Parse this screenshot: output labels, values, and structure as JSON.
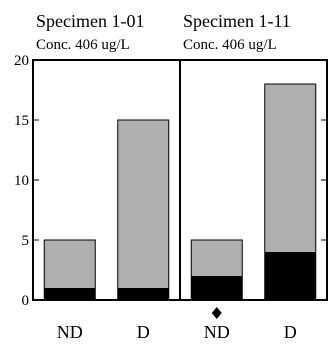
{
  "chart_data": {
    "type": "bar",
    "stacked": true,
    "ylim": [
      0,
      20
    ],
    "yticks": [
      0,
      5,
      10,
      15,
      20
    ],
    "colors": {
      "bottom": "#000000",
      "top": "#b0b0b0",
      "frame": "#000000"
    },
    "panels": [
      {
        "title": "Specimen 1-01",
        "subtitle": "Conc. 406 ug/L",
        "categories": [
          "ND",
          "D"
        ],
        "series": [
          {
            "values": [
              1,
              1
            ]
          },
          {
            "values": [
              4,
              14
            ]
          }
        ],
        "totals": [
          5,
          15
        ]
      },
      {
        "title": "Specimen 1-11",
        "subtitle": "Conc. 406 ug/L",
        "categories": [
          "ND",
          "D"
        ],
        "series": [
          {
            "values": [
              2,
              4
            ]
          },
          {
            "values": [
              3,
              14
            ]
          }
        ],
        "totals": [
          5,
          18
        ],
        "marker": {
          "category": "ND",
          "shape": "diamond"
        }
      }
    ]
  }
}
